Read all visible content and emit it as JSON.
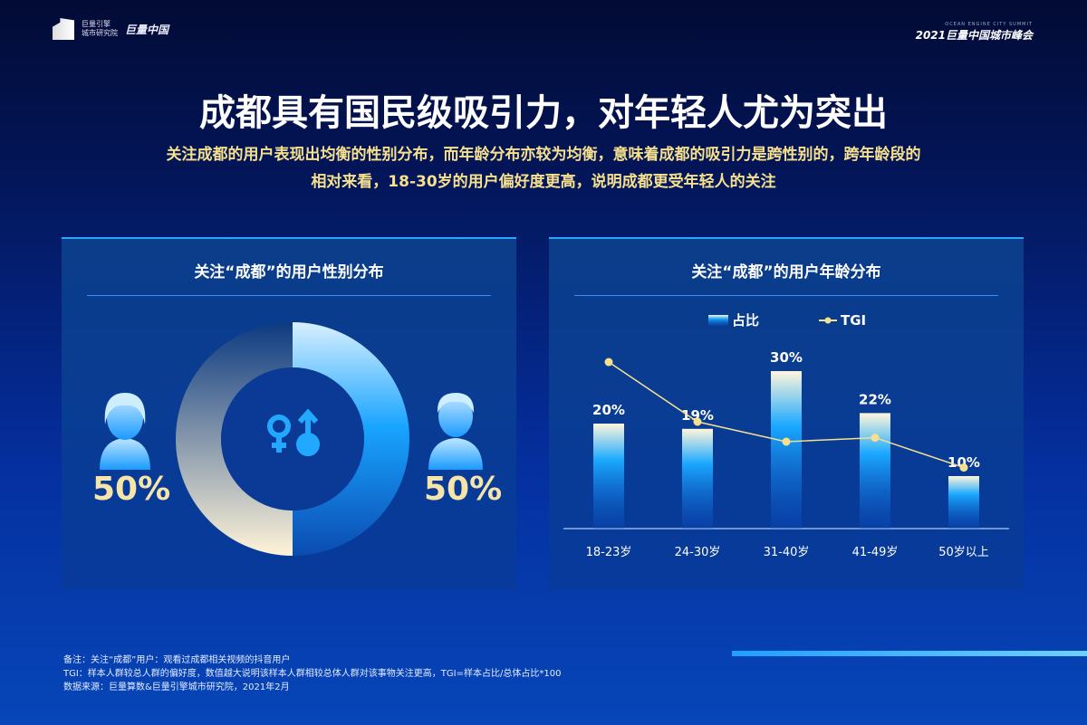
{
  "header": {
    "logo_top": "巨量引擎",
    "logo_bottom": "城市研究院",
    "brand": "巨量中国",
    "summit_en": "OCEAN ENGINE CITY SUMMIT",
    "summit": "2021巨量中国城市峰会"
  },
  "title": "成都具有国民级吸引力，对年轻人尤为突出",
  "subtitle": [
    "关注成都的用户表现出均衡的性别分布，而年龄分布亦较为均衡，意味着成都的吸引力是跨性别的，跨年龄段的",
    "相对来看，18-30岁的用户偏好度更高，说明成都更受年轻人的关注"
  ],
  "gender_panel": {
    "title": "关注“成都”的用户性别分布",
    "female_pct": "50%",
    "male_pct": "50%",
    "female_share": 50,
    "male_share": 50,
    "icons": [
      "female-avatar-icon",
      "gender-symbol-icon",
      "male-avatar-icon"
    ]
  },
  "chart_data": {
    "type": "bar",
    "title": "关注“成都”的用户年龄分布",
    "categories": [
      "18-23岁",
      "24-30岁",
      "31-40岁",
      "41-49岁",
      "50岁以上"
    ],
    "series": [
      {
        "name": "占比",
        "type": "bar",
        "values": [
          20,
          19,
          30,
          22,
          10
        ],
        "labels": [
          "20%",
          "19%",
          "30%",
          "22%",
          "10%"
        ]
      },
      {
        "name": "TGI",
        "type": "line",
        "values": [
          140,
          110,
          100,
          102,
          87
        ]
      }
    ],
    "ylim": [
      0,
      30
    ],
    "grid": false,
    "legend": "top-center",
    "colors": {
      "bar": "#1aa8ff",
      "line": "#f6e08e"
    }
  },
  "notes": [
    "备注：关注“成都”用户：观看过成都相关视频的抖音用户",
    "TGI：样本人群较总人群的偏好度，数值越大说明该样本人群相较总体人群对该事物关注更高，TGI=样本占比/总体占比*100",
    "数据来源：巨量算数&巨量引擎城市研究院，2021年2月"
  ]
}
